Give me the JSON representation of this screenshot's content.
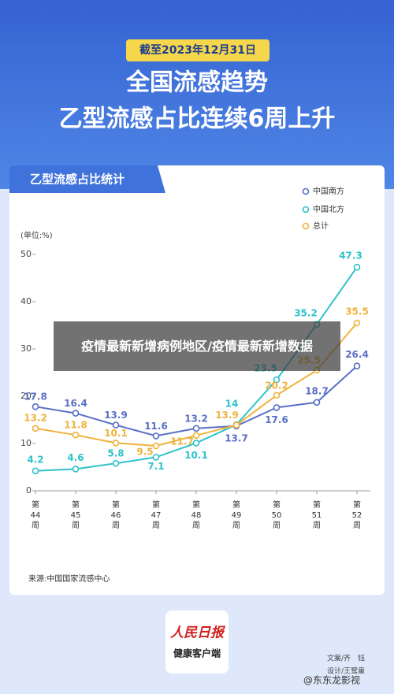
{
  "header": {
    "date_tag": "截至2023年12月31日",
    "title_line1": "全国流感趋势",
    "title_line2": "乙型流感占比连续6周上升"
  },
  "card_title": "乙型流感占比统计",
  "chart_data": {
    "type": "line",
    "y_unit": "(单位:%)",
    "categories": [
      "第44周",
      "第45周",
      "第46周",
      "第47周",
      "第48周",
      "第49周",
      "第50周",
      "第51周",
      "第52周"
    ],
    "series": [
      {
        "name": "中国南方",
        "color": "#5a6fc6",
        "values": [
          17.8,
          16.4,
          13.9,
          11.6,
          13.2,
          13.7,
          17.6,
          18.7,
          26.4
        ]
      },
      {
        "name": "中国北方",
        "color": "#2fc2cb",
        "values": [
          4.2,
          4.6,
          5.8,
          7.1,
          10.1,
          14,
          23.5,
          35.2,
          47.3
        ]
      },
      {
        "name": "总计",
        "color": "#efb23b",
        "values": [
          13.2,
          11.8,
          10.1,
          9.5,
          11.7,
          13.9,
          20.2,
          25.5,
          35.5
        ]
      }
    ],
    "ylim": [
      0,
      50
    ],
    "yticks": [
      0,
      10,
      20,
      30,
      40,
      50
    ],
    "grid": false,
    "legend": "top-right"
  },
  "source": "来源:中国国家流感中心",
  "overlay_caption": "疫情最新新增病例地区/疫情最新新增数据",
  "logo": {
    "brand": "人民日报",
    "sub": "健康客户端"
  },
  "credits": {
    "writer": "文案/齐　钰",
    "designer": "设计/王鹭童"
  },
  "watermark": "@东东龙影视"
}
